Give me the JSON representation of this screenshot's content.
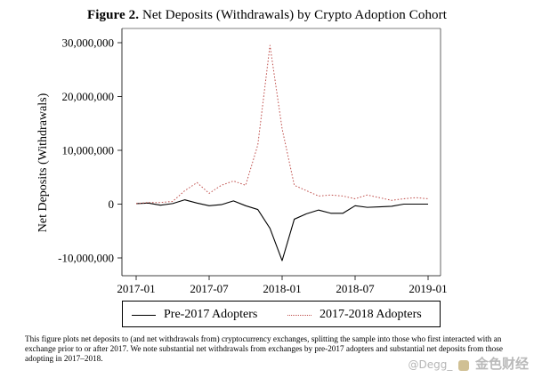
{
  "figure": {
    "label": "Figure 2.",
    "title": "Net Deposits (Withdrawals) by Crypto Adoption Cohort"
  },
  "caption": "This figure plots net deposits to (and net withdrawals from) cryptocurrency exchanges, splitting the sample into those who first interacted with an exchange prior to or after 2017. We note substantial net withdrawals from exchanges by pre-2017 adopters and substantial net deposits from those adopting in 2017–2018.",
  "watermark": {
    "prefix": "@Degg_",
    "brand": "金色财经"
  },
  "chart_data": {
    "type": "line",
    "title": "Net Deposits (Withdrawals) by Crypto Adoption Cohort",
    "xlabel": "",
    "ylabel": "Net Deposits (Withdrawals)",
    "x_ticks": [
      "2017-01",
      "2017-07",
      "2018-01",
      "2018-07",
      "2019-01"
    ],
    "y_ticks": [
      -10000000,
      0,
      10000000,
      20000000,
      30000000
    ],
    "y_tick_labels": [
      "-10,000,000",
      "0",
      "10,000,000",
      "20,000,000",
      "30,000,000"
    ],
    "ylim": [
      -10000000,
      30000000
    ],
    "xlim": [
      "2017-01",
      "2019-01"
    ],
    "grid": false,
    "legend_position": "bottom",
    "x": [
      "2017-01",
      "2017-02",
      "2017-03",
      "2017-04",
      "2017-05",
      "2017-06",
      "2017-07",
      "2017-08",
      "2017-09",
      "2017-10",
      "2017-11",
      "2017-12",
      "2018-01",
      "2018-02",
      "2018-03",
      "2018-04",
      "2018-05",
      "2018-06",
      "2018-07",
      "2018-08",
      "2018-09",
      "2018-10",
      "2018-11",
      "2018-12",
      "2019-01"
    ],
    "series": [
      {
        "name": "Pre-2017 Adopters",
        "color": "#000000",
        "style": "solid",
        "values": [
          100000,
          200000,
          -200000,
          100000,
          800000,
          200000,
          -300000,
          -100000,
          600000,
          -300000,
          -1000000,
          -4500000,
          -10500000,
          -2800000,
          -1800000,
          -1100000,
          -1700000,
          -1700000,
          -300000,
          -600000,
          -500000,
          -400000,
          0,
          0,
          0
        ]
      },
      {
        "name": "2017-2018 Adopters",
        "color": "#c0504d",
        "style": "dotted",
        "values": [
          100000,
          300000,
          300000,
          500000,
          2500000,
          4000000,
          2000000,
          3500000,
          4300000,
          3500000,
          11000000,
          29500000,
          14000000,
          3500000,
          2500000,
          1500000,
          1700000,
          1500000,
          1000000,
          1700000,
          1200000,
          700000,
          1000000,
          1200000,
          1000000
        ]
      }
    ]
  }
}
